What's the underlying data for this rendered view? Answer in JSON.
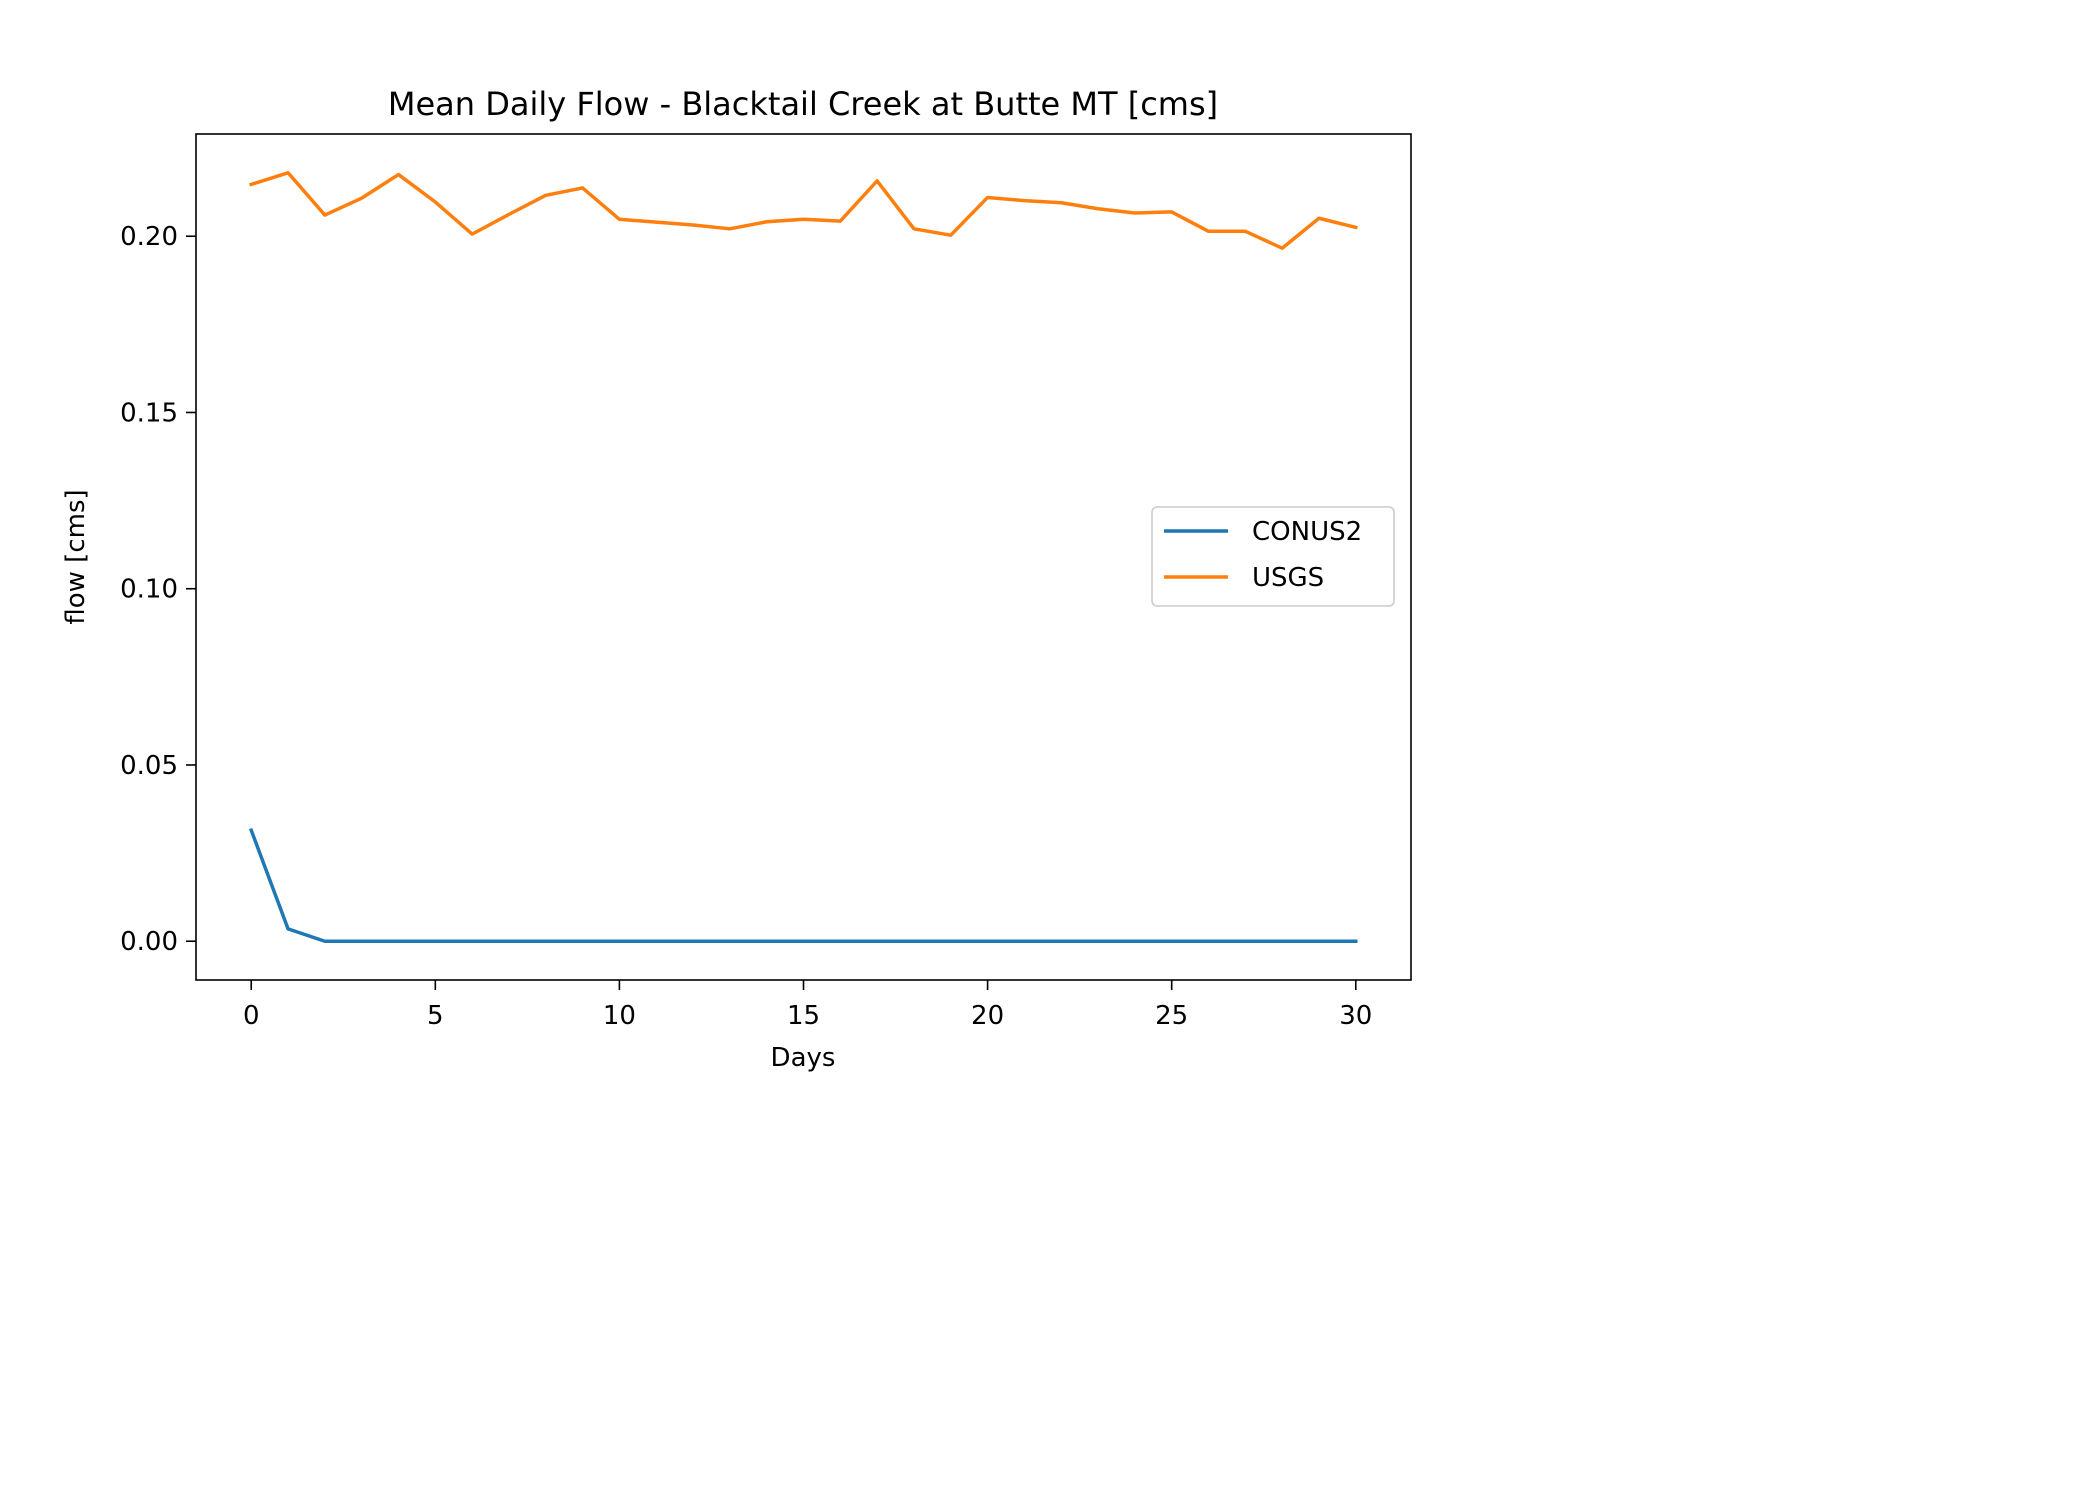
{
  "chart_data": {
    "type": "line",
    "title": "Mean Daily Flow - Blacktail Creek at Butte MT [cms]",
    "xlabel": "Days",
    "ylabel": "flow [cms]",
    "xlim": [
      -1.5,
      31.5
    ],
    "ylim": [
      -0.011,
      0.229
    ],
    "xticks": [
      0,
      5,
      10,
      15,
      20,
      25,
      30
    ],
    "xtick_labels": [
      "0",
      "5",
      "10",
      "15",
      "20",
      "25",
      "30"
    ],
    "yticks": [
      0.0,
      0.05,
      0.1,
      0.15,
      0.2
    ],
    "ytick_labels": [
      "0.00",
      "0.05",
      "0.10",
      "0.15",
      "0.20"
    ],
    "grid": false,
    "legend_position": "center-right",
    "x": [
      0,
      1,
      2,
      3,
      4,
      5,
      6,
      7,
      8,
      9,
      10,
      11,
      12,
      13,
      14,
      15,
      16,
      17,
      18,
      19,
      20,
      21,
      22,
      23,
      24,
      25,
      26,
      27,
      28,
      29,
      30
    ],
    "series": [
      {
        "name": "CONUS2",
        "color": "#1f77b4",
        "values": [
          0.0315,
          0.0035,
          0.0,
          0.0,
          0.0,
          0.0,
          0.0,
          0.0,
          0.0,
          0.0,
          0.0,
          0.0,
          0.0,
          0.0,
          0.0,
          0.0,
          0.0,
          0.0,
          0.0,
          0.0,
          0.0,
          0.0,
          0.0,
          0.0,
          0.0,
          0.0,
          0.0,
          0.0,
          0.0,
          0.0,
          0.0
        ]
      },
      {
        "name": "USGS",
        "color": "#ff7f0e",
        "values": [
          0.2147,
          0.218,
          0.206,
          0.2108,
          0.2175,
          0.2097,
          0.2006,
          0.2062,
          0.2116,
          0.2137,
          0.2048,
          0.204,
          0.2032,
          0.2021,
          0.2041,
          0.2048,
          0.2043,
          0.2157,
          0.2021,
          0.2003,
          0.211,
          0.2101,
          0.2095,
          0.2078,
          0.2066,
          0.2069,
          0.2014,
          0.2014,
          0.1966,
          0.2051,
          0.2025
        ]
      }
    ]
  }
}
